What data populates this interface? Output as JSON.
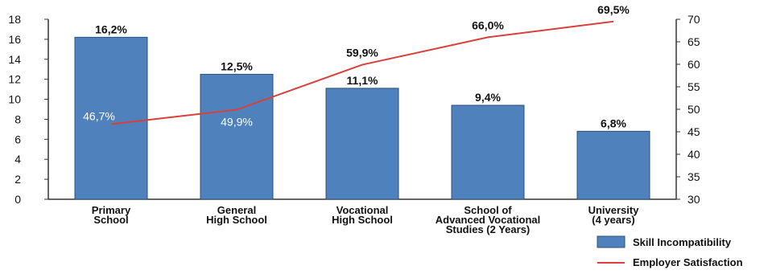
{
  "chart_data": {
    "type": "bar",
    "categories": [
      [
        "Primary",
        "School"
      ],
      [
        "General",
        "High School"
      ],
      [
        "Vocational",
        "High School"
      ],
      [
        "School of",
        "Advanced Vocational",
        "Studies (2 Years)"
      ],
      [
        "University",
        "(4 years)"
      ]
    ],
    "series": [
      {
        "name": "Skill Incompatibility",
        "type": "bar",
        "axis": "left",
        "color": "#4f81bd",
        "values": [
          16.2,
          12.5,
          11.1,
          9.4,
          6.8
        ],
        "labels": [
          "16,2%",
          "12,5%",
          "11,1%",
          "9,4%",
          "6,8%"
        ]
      },
      {
        "name": "Employer Satisfaction",
        "type": "line",
        "axis": "right",
        "color": "#d9403a",
        "values": [
          46.7,
          49.9,
          59.9,
          66.0,
          69.5
        ],
        "labels": [
          "46,7%",
          "49,9%",
          "59,9%",
          "66,0%",
          "69,5%"
        ]
      }
    ],
    "y_left": {
      "ylim": [
        0,
        18
      ],
      "ticks": [
        "0",
        "2",
        "4",
        "6",
        "8",
        "10",
        "12",
        "14",
        "16",
        "18"
      ]
    },
    "y_right": {
      "ylim": [
        30,
        70
      ],
      "ticks": [
        "30",
        "35",
        "40",
        "45",
        "50",
        "55",
        "60",
        "65",
        "70"
      ]
    },
    "legend": {
      "position": "bottom-right",
      "items": [
        "Skill Incompatibility",
        "Employer Satisfaction"
      ]
    },
    "grid": false
  }
}
